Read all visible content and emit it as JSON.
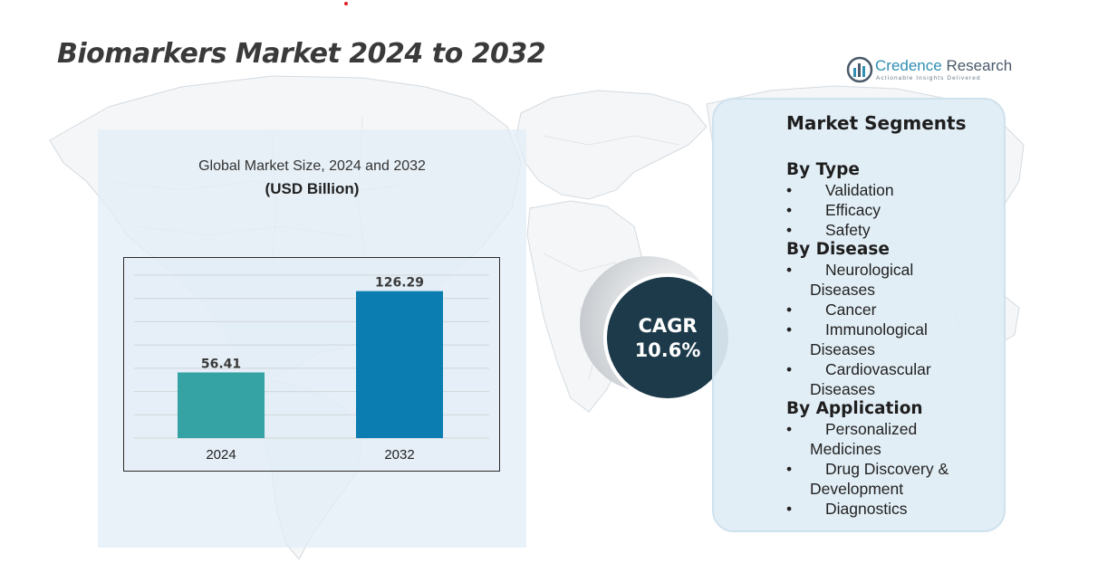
{
  "title": "Biomarkers Market 2024 to 2032",
  "logo": {
    "brand_primary": "Credence",
    "brand_secondary": "Research",
    "tagline": "Actionable Insights Delivered"
  },
  "chart_data": {
    "type": "bar",
    "title": "Global Market Size, 2024 and 2032",
    "ylabel": "(USD Billion)",
    "categories": [
      "2024",
      "2032"
    ],
    "values": [
      56.41,
      126.29
    ],
    "data_labels": [
      "56.41",
      "126.29"
    ],
    "colors": [
      "#35a3a3",
      "#0b7db0"
    ],
    "ylim": [
      0,
      140
    ],
    "grid": true,
    "legend": "none"
  },
  "cagr": {
    "label": "CAGR",
    "value": "10.6%"
  },
  "segments": {
    "title": "Market Segments",
    "groups": [
      {
        "heading": "By Type",
        "items": [
          [
            "Validation"
          ],
          [
            "Efficacy"
          ],
          [
            "Safety"
          ]
        ]
      },
      {
        "heading": "By Disease",
        "items": [
          [
            "Neurological",
            "Diseases"
          ],
          [
            "Cancer"
          ],
          [
            "Immunological",
            "Diseases"
          ],
          [
            "Cardiovascular",
            "Diseases"
          ]
        ]
      },
      {
        "heading": "By Application",
        "items": [
          [
            "Personalized",
            "Medicines"
          ],
          [
            "Drug Discovery &",
            "Development"
          ],
          [
            "Diagnostics"
          ]
        ]
      }
    ]
  },
  "colors": {
    "bar_2024": "#35a3a3",
    "bar_2032": "#0b7db0",
    "cagr_fill": "#1d3a4a",
    "panel_bg": "#e2edf6",
    "segments_bg": "#dfedf5"
  }
}
